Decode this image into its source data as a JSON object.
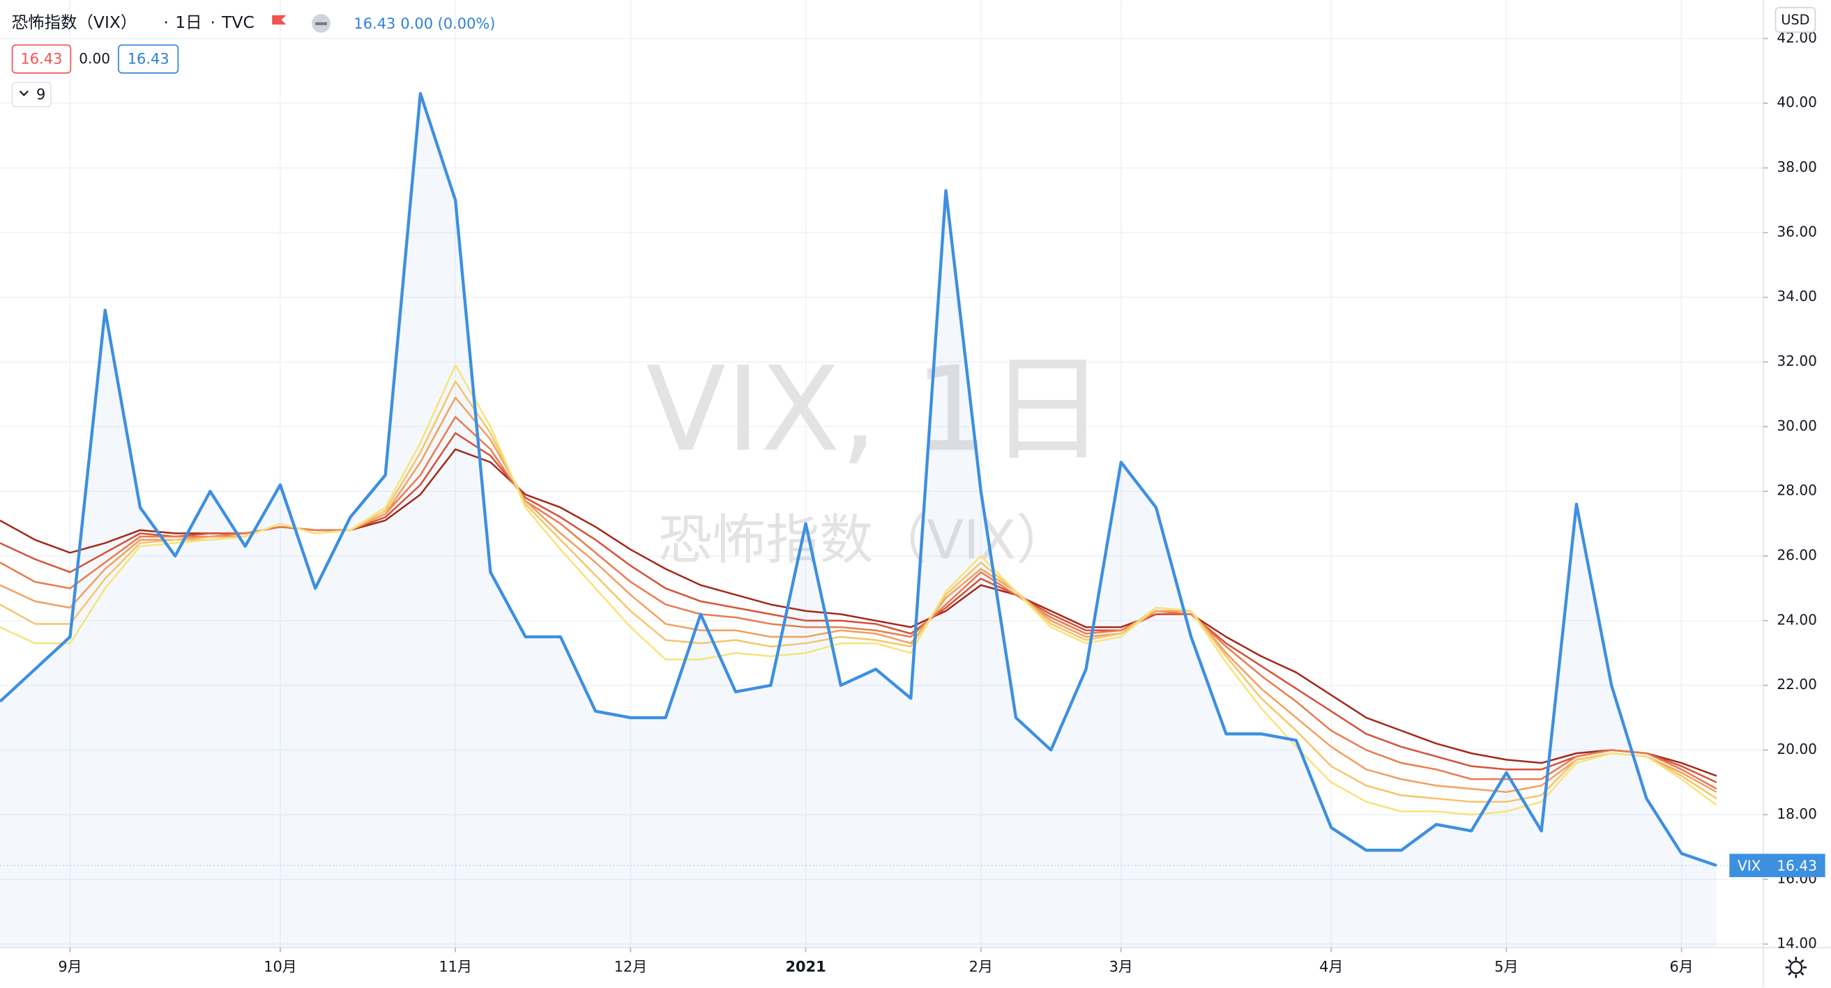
{
  "chart_data": {
    "type": "line",
    "header": {
      "title": "恐怖指数（VIX）",
      "interval": "1日",
      "source": "TVC",
      "price": "16.43",
      "change": "0.00 (0.00%)",
      "legend_values": [
        "16.43",
        "0.00",
        "16.43"
      ],
      "indicator_count": "9"
    },
    "watermark": [
      "VIX, 1日",
      "恐怖指数（VIX）"
    ],
    "currency": "USD",
    "last_label": {
      "name": "VIX",
      "value": "16.43"
    },
    "categories": [
      null,
      null,
      "9月",
      null,
      null,
      null,
      null,
      null,
      "10月",
      null,
      null,
      null,
      null,
      "11月",
      null,
      null,
      null,
      null,
      "12月",
      null,
      null,
      null,
      null,
      "2021",
      null,
      null,
      null,
      null,
      "2月",
      null,
      null,
      null,
      "3月",
      null,
      null,
      null,
      null,
      null,
      "4月",
      null,
      null,
      null,
      null,
      "5月",
      null,
      null,
      null,
      null,
      "6月",
      null
    ],
    "series": [
      {
        "name": "VIX",
        "color": "#3d8fe0",
        "area": true,
        "values": [
          21.5,
          22.5,
          23.5,
          33.6,
          27.5,
          26.0,
          28.0,
          26.3,
          28.2,
          25.0,
          27.2,
          28.5,
          40.3,
          37.0,
          25.5,
          23.5,
          23.5,
          21.2,
          21.0,
          21.0,
          24.2,
          21.8,
          22.0,
          27.0,
          22.0,
          22.5,
          21.6,
          37.3,
          28.0,
          21.0,
          20.0,
          22.5,
          28.9,
          27.5,
          23.5,
          20.5,
          20.5,
          20.3,
          17.6,
          16.9,
          16.9,
          17.7,
          17.5,
          19.3,
          17.5,
          27.6,
          22.0,
          18.5,
          16.8,
          16.43
        ]
      },
      {
        "color": "#f7e37a",
        "values": [
          23.8,
          23.3,
          23.3,
          25.0,
          26.3,
          26.4,
          26.5,
          26.6,
          27.0,
          26.7,
          26.8,
          27.5,
          29.5,
          31.9,
          30.0,
          27.5,
          26.2,
          25.0,
          23.8,
          22.8,
          22.8,
          23.0,
          22.9,
          23.0,
          23.3,
          23.3,
          23.0,
          24.9,
          26.0,
          24.9,
          23.8,
          23.3,
          23.5,
          24.4,
          24.3,
          22.7,
          21.3,
          20.1,
          19.0,
          18.4,
          18.1,
          18.1,
          18.0,
          18.1,
          18.4,
          19.6,
          19.9,
          19.8,
          19.1,
          18.3
        ]
      },
      {
        "color": "#f6c46a",
        "values": [
          24.5,
          23.9,
          23.9,
          25.3,
          26.4,
          26.5,
          26.5,
          26.6,
          27.0,
          26.7,
          26.8,
          27.4,
          29.2,
          31.4,
          29.8,
          27.6,
          26.5,
          25.4,
          24.3,
          23.4,
          23.3,
          23.4,
          23.2,
          23.3,
          23.5,
          23.4,
          23.2,
          24.8,
          25.8,
          24.9,
          23.9,
          23.4,
          23.6,
          24.4,
          24.3,
          22.9,
          21.6,
          20.6,
          19.5,
          18.9,
          18.6,
          18.5,
          18.4,
          18.4,
          18.6,
          19.7,
          19.9,
          19.8,
          19.2,
          18.5
        ]
      },
      {
        "color": "#f2a05c",
        "values": [
          25.1,
          24.6,
          24.4,
          25.6,
          26.5,
          26.5,
          26.6,
          26.6,
          27.0,
          26.7,
          26.8,
          27.3,
          28.9,
          30.9,
          29.6,
          27.7,
          26.7,
          25.8,
          24.8,
          23.9,
          23.7,
          23.7,
          23.5,
          23.5,
          23.7,
          23.6,
          23.3,
          24.7,
          25.6,
          24.9,
          24.0,
          23.5,
          23.6,
          24.3,
          24.3,
          23.0,
          21.9,
          21.0,
          20.1,
          19.4,
          19.1,
          18.9,
          18.8,
          18.7,
          18.9,
          19.7,
          19.9,
          19.8,
          19.3,
          18.7
        ]
      },
      {
        "color": "#ea7b4e",
        "values": [
          25.8,
          25.2,
          25.0,
          25.8,
          26.6,
          26.6,
          26.6,
          26.7,
          26.9,
          26.8,
          26.8,
          27.3,
          28.5,
          30.3,
          29.3,
          27.7,
          27.0,
          26.1,
          25.2,
          24.5,
          24.2,
          24.1,
          23.9,
          23.8,
          23.8,
          23.7,
          23.5,
          24.5,
          25.5,
          24.8,
          24.1,
          23.6,
          23.7,
          24.3,
          24.2,
          23.2,
          22.3,
          21.5,
          20.6,
          20.0,
          19.6,
          19.4,
          19.1,
          19.1,
          19.1,
          19.8,
          20.0,
          19.9,
          19.4,
          18.8
        ]
      },
      {
        "color": "#d5523a",
        "values": [
          26.4,
          25.9,
          25.5,
          26.1,
          26.7,
          26.6,
          26.7,
          26.7,
          26.9,
          26.8,
          26.8,
          27.2,
          28.2,
          29.8,
          29.1,
          27.8,
          27.2,
          26.5,
          25.7,
          25.0,
          24.6,
          24.4,
          24.2,
          24.0,
          24.0,
          23.9,
          23.6,
          24.4,
          25.3,
          24.8,
          24.2,
          23.7,
          23.7,
          24.2,
          24.2,
          23.3,
          22.6,
          21.9,
          21.2,
          20.5,
          20.1,
          19.8,
          19.5,
          19.4,
          19.4,
          19.8,
          20.0,
          19.9,
          19.5,
          19.0
        ]
      },
      {
        "color": "#a3281a",
        "values": [
          27.1,
          26.5,
          26.1,
          26.4,
          26.8,
          26.7,
          26.7,
          26.7,
          26.9,
          26.8,
          26.8,
          27.1,
          27.9,
          29.3,
          28.9,
          27.9,
          27.5,
          26.9,
          26.2,
          25.6,
          25.1,
          24.8,
          24.5,
          24.3,
          24.2,
          24.0,
          23.8,
          24.3,
          25.1,
          24.8,
          24.3,
          23.8,
          23.8,
          24.2,
          24.2,
          23.5,
          22.9,
          22.4,
          21.7,
          21.0,
          20.6,
          20.2,
          19.9,
          19.7,
          19.6,
          19.9,
          20.0,
          19.9,
          19.6,
          19.2
        ]
      }
    ],
    "ylim": [
      14,
      42
    ],
    "yticks": [
      {
        "value": 14,
        "label": "14.00"
      },
      {
        "value": 16,
        "label": "16.00"
      },
      {
        "value": 18,
        "label": "18.00"
      },
      {
        "value": 20,
        "label": "20.00"
      },
      {
        "value": 22,
        "label": "22.00"
      },
      {
        "value": 24,
        "label": "24.00"
      },
      {
        "value": 26,
        "label": "26.00"
      },
      {
        "value": 28,
        "label": "28.00"
      },
      {
        "value": 30,
        "label": "30.00"
      },
      {
        "value": 32,
        "label": "32.00"
      },
      {
        "value": 34,
        "label": "34.00"
      },
      {
        "value": 36,
        "label": "36.00"
      },
      {
        "value": 38,
        "label": "38.00"
      },
      {
        "value": 40,
        "label": "40.00"
      },
      {
        "value": 42,
        "label": "42.00"
      }
    ],
    "grid": true
  }
}
